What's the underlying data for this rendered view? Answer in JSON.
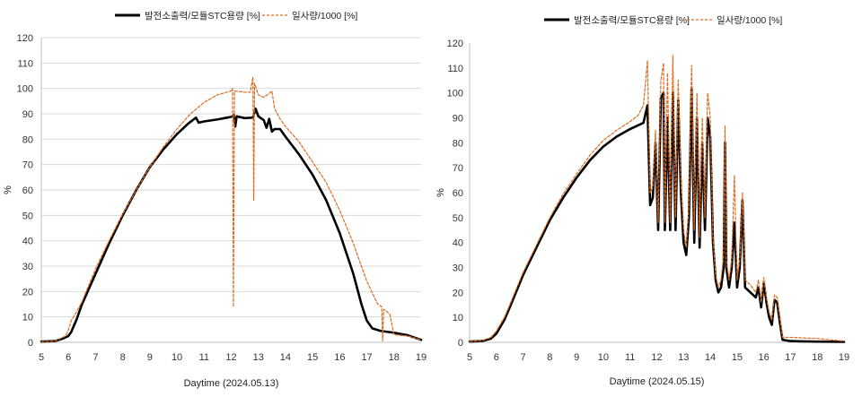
{
  "chart_data": [
    {
      "type": "line",
      "title": "",
      "xlabel": "Daytime (2024.05.13)",
      "ylabel": "%",
      "xlim": [
        5,
        19
      ],
      "ylim": [
        0,
        120
      ],
      "x_ticks": [
        5,
        6,
        7,
        8,
        9,
        10,
        11,
        12,
        13,
        14,
        15,
        16,
        17,
        18,
        19
      ],
      "y_ticks": [
        0,
        10,
        20,
        30,
        40,
        50,
        60,
        70,
        80,
        90,
        100,
        110,
        120
      ],
      "grid": "horizontal",
      "legend": "top-center",
      "series": [
        {
          "name": "발전소출력/모듈STC용량 [%]",
          "color": "#000000",
          "style": "solid",
          "points": [
            [
              5.0,
              0.3
            ],
            [
              5.5,
              0.5
            ],
            [
              5.8,
              1.5
            ],
            [
              6.0,
              2.5
            ],
            [
              6.1,
              4.0
            ],
            [
              6.3,
              9.0
            ],
            [
              6.5,
              15.0
            ],
            [
              7.0,
              27.0
            ],
            [
              7.5,
              39.0
            ],
            [
              8.0,
              50.0
            ],
            [
              8.5,
              60.0
            ],
            [
              9.0,
              69.0
            ],
            [
              9.5,
              76.0
            ],
            [
              10.0,
              82.0
            ],
            [
              10.4,
              86.0
            ],
            [
              10.7,
              88.5
            ],
            [
              10.8,
              86.5
            ],
            [
              11.0,
              87.0
            ],
            [
              11.5,
              87.8
            ],
            [
              12.0,
              88.8
            ],
            [
              12.1,
              89.5
            ],
            [
              12.15,
              85.0
            ],
            [
              12.2,
              89.0
            ],
            [
              12.5,
              88.3
            ],
            [
              12.8,
              88.5
            ],
            [
              12.9,
              92.0
            ],
            [
              13.0,
              89.0
            ],
            [
              13.2,
              87.5
            ],
            [
              13.3,
              84.5
            ],
            [
              13.4,
              88.0
            ],
            [
              13.5,
              83.0
            ],
            [
              13.6,
              84.0
            ],
            [
              13.8,
              84.0
            ],
            [
              14.0,
              81.0
            ],
            [
              14.5,
              74.0
            ],
            [
              15.0,
              66.0
            ],
            [
              15.5,
              56.0
            ],
            [
              16.0,
              43.0
            ],
            [
              16.5,
              27.0
            ],
            [
              16.8,
              15.0
            ],
            [
              17.0,
              8.5
            ],
            [
              17.2,
              5.5
            ],
            [
              17.5,
              4.5
            ],
            [
              18.0,
              3.8
            ],
            [
              18.5,
              2.8
            ],
            [
              19.0,
              1.0
            ]
          ]
        },
        {
          "name": "일사량/1000 [%]",
          "color": "#E06A1E",
          "style": "dashed",
          "points": [
            [
              5.0,
              0.2
            ],
            [
              5.5,
              0.5
            ],
            [
              5.9,
              2.5
            ],
            [
              6.0,
              5.0
            ],
            [
              6.1,
              8.5
            ],
            [
              6.3,
              12.0
            ],
            [
              6.5,
              16.0
            ],
            [
              7.0,
              29.0
            ],
            [
              7.5,
              40.0
            ],
            [
              8.0,
              50.5
            ],
            [
              8.5,
              60.0
            ],
            [
              9.0,
              69.0
            ],
            [
              9.5,
              77.0
            ],
            [
              10.0,
              84.0
            ],
            [
              10.5,
              90.0
            ],
            [
              11.0,
              94.5
            ],
            [
              11.5,
              97.5
            ],
            [
              12.0,
              99.0
            ],
            [
              12.05,
              100.0
            ],
            [
              12.08,
              14.0
            ],
            [
              12.12,
              99.0
            ],
            [
              12.5,
              98.5
            ],
            [
              12.7,
              98.5
            ],
            [
              12.8,
              104.5
            ],
            [
              12.83,
              56.0
            ],
            [
              12.86,
              102.0
            ],
            [
              13.0,
              97.5
            ],
            [
              13.2,
              96.5
            ],
            [
              13.4,
              98.0
            ],
            [
              13.5,
              99.0
            ],
            [
              13.6,
              92.0
            ],
            [
              13.8,
              88.0
            ],
            [
              14.0,
              85.0
            ],
            [
              14.5,
              79.0
            ],
            [
              15.0,
              71.0
            ],
            [
              15.5,
              63.0
            ],
            [
              16.0,
              52.0
            ],
            [
              16.5,
              39.0
            ],
            [
              17.0,
              24.0
            ],
            [
              17.4,
              15.0
            ],
            [
              17.55,
              14.0
            ],
            [
              17.58,
              0.5
            ],
            [
              17.62,
              13.0
            ],
            [
              17.7,
              12.5
            ],
            [
              17.85,
              11.0
            ],
            [
              18.0,
              3.0
            ],
            [
              18.5,
              2.5
            ],
            [
              19.0,
              1.0
            ]
          ]
        }
      ]
    },
    {
      "type": "line",
      "title": "",
      "xlabel": "Daytime (2024.05.15)",
      "ylabel": "%",
      "xlim": [
        5,
        19
      ],
      "ylim": [
        0,
        120
      ],
      "x_ticks": [
        5,
        6,
        7,
        8,
        9,
        10,
        11,
        12,
        13,
        14,
        15,
        16,
        17,
        18,
        19
      ],
      "y_ticks": [
        0,
        10,
        20,
        30,
        40,
        50,
        60,
        70,
        80,
        90,
        100,
        110,
        120
      ],
      "grid": "none",
      "legend": "top-center",
      "series": [
        {
          "name": "발전소출력/모듈STC용량 [%]",
          "color": "#000000",
          "style": "solid",
          "points": [
            [
              5.0,
              0.3
            ],
            [
              5.5,
              0.6
            ],
            [
              5.8,
              1.5
            ],
            [
              6.0,
              3.5
            ],
            [
              6.3,
              9.0
            ],
            [
              6.5,
              14.0
            ],
            [
              7.0,
              27.0
            ],
            [
              7.5,
              38.0
            ],
            [
              8.0,
              49.0
            ],
            [
              8.5,
              58.0
            ],
            [
              9.0,
              66.0
            ],
            [
              9.5,
              73.0
            ],
            [
              10.0,
              78.5
            ],
            [
              10.5,
              82.5
            ],
            [
              11.0,
              85.5
            ],
            [
              11.3,
              87.0
            ],
            [
              11.5,
              88.0
            ],
            [
              11.65,
              95.0
            ],
            [
              11.75,
              55.0
            ],
            [
              11.85,
              58.0
            ],
            [
              11.95,
              80.0
            ],
            [
              12.05,
              45.0
            ],
            [
              12.15,
              98.0
            ],
            [
              12.25,
              100.0
            ],
            [
              12.3,
              45.0
            ],
            [
              12.4,
              90.0
            ],
            [
              12.5,
              45.0
            ],
            [
              12.6,
              100.0
            ],
            [
              12.7,
              45.0
            ],
            [
              12.8,
              97.0
            ],
            [
              12.9,
              60.0
            ],
            [
              13.0,
              40.0
            ],
            [
              13.1,
              35.0
            ],
            [
              13.2,
              50.0
            ],
            [
              13.3,
              102.0
            ],
            [
              13.4,
              40.0
            ],
            [
              13.5,
              90.0
            ],
            [
              13.6,
              38.0
            ],
            [
              13.7,
              80.0
            ],
            [
              13.8,
              45.0
            ],
            [
              13.9,
              90.0
            ],
            [
              14.0,
              82.0
            ],
            [
              14.1,
              40.0
            ],
            [
              14.2,
              25.0
            ],
            [
              14.3,
              20.0
            ],
            [
              14.4,
              22.0
            ],
            [
              14.5,
              30.0
            ],
            [
              14.55,
              80.0
            ],
            [
              14.6,
              30.0
            ],
            [
              14.7,
              22.0
            ],
            [
              14.8,
              30.0
            ],
            [
              14.9,
              48.0
            ],
            [
              15.0,
              22.0
            ],
            [
              15.1,
              30.0
            ],
            [
              15.2,
              57.0
            ],
            [
              15.3,
              22.0
            ],
            [
              15.5,
              20.0
            ],
            [
              15.7,
              18.0
            ],
            [
              15.8,
              22.0
            ],
            [
              15.9,
              14.0
            ],
            [
              16.0,
              24.0
            ],
            [
              16.1,
              16.0
            ],
            [
              16.2,
              10.0
            ],
            [
              16.3,
              7.0
            ],
            [
              16.4,
              17.0
            ],
            [
              16.5,
              16.0
            ],
            [
              16.6,
              8.0
            ],
            [
              16.7,
              1.0
            ],
            [
              17.0,
              0.5
            ],
            [
              18.0,
              0.3
            ],
            [
              19.0,
              0.2
            ]
          ]
        },
        {
          "name": "일사량/1000 [%]",
          "color": "#E06A1E",
          "style": "dashed",
          "points": [
            [
              5.0,
              0.3
            ],
            [
              5.5,
              0.8
            ],
            [
              5.8,
              2.0
            ],
            [
              6.0,
              4.5
            ],
            [
              6.3,
              10.0
            ],
            [
              6.5,
              15.0
            ],
            [
              7.0,
              28.0
            ],
            [
              7.5,
              39.0
            ],
            [
              8.0,
              50.0
            ],
            [
              8.5,
              59.5
            ],
            [
              9.0,
              67.5
            ],
            [
              9.5,
              75.0
            ],
            [
              10.0,
              81.0
            ],
            [
              10.5,
              85.0
            ],
            [
              11.0,
              88.5
            ],
            [
              11.3,
              91.0
            ],
            [
              11.5,
              95.0
            ],
            [
              11.65,
              113.0
            ],
            [
              11.75,
              60.0
            ],
            [
              11.85,
              62.0
            ],
            [
              11.95,
              85.0
            ],
            [
              12.05,
              48.0
            ],
            [
              12.15,
              105.0
            ],
            [
              12.25,
              112.0
            ],
            [
              12.3,
              48.0
            ],
            [
              12.4,
              108.0
            ],
            [
              12.5,
              48.0
            ],
            [
              12.6,
              115.0
            ],
            [
              12.7,
              50.0
            ],
            [
              12.8,
              105.0
            ],
            [
              12.9,
              65.0
            ],
            [
              13.0,
              45.0
            ],
            [
              13.1,
              38.0
            ],
            [
              13.2,
              55.0
            ],
            [
              13.3,
              111.0
            ],
            [
              13.4,
              45.0
            ],
            [
              13.5,
              100.0
            ],
            [
              13.6,
              42.0
            ],
            [
              13.7,
              90.0
            ],
            [
              13.8,
              50.0
            ],
            [
              13.9,
              100.0
            ],
            [
              14.0,
              90.0
            ],
            [
              14.1,
              42.0
            ],
            [
              14.2,
              27.0
            ],
            [
              14.3,
              22.0
            ],
            [
              14.4,
              25.0
            ],
            [
              14.5,
              35.0
            ],
            [
              14.55,
              87.0
            ],
            [
              14.6,
              33.0
            ],
            [
              14.7,
              25.0
            ],
            [
              14.8,
              33.0
            ],
            [
              14.9,
              67.0
            ],
            [
              15.0,
              25.0
            ],
            [
              15.1,
              33.0
            ],
            [
              15.2,
              60.0
            ],
            [
              15.3,
              25.0
            ],
            [
              15.5,
              23.0
            ],
            [
              15.7,
              20.0
            ],
            [
              15.8,
              25.0
            ],
            [
              15.9,
              16.0
            ],
            [
              16.0,
              26.0
            ],
            [
              16.1,
              18.0
            ],
            [
              16.2,
              12.0
            ],
            [
              16.3,
              9.0
            ],
            [
              16.4,
              19.0
            ],
            [
              16.5,
              18.0
            ],
            [
              16.6,
              10.0
            ],
            [
              16.7,
              2.0
            ],
            [
              17.0,
              2.0
            ],
            [
              18.0,
              1.5
            ],
            [
              19.0,
              0.5
            ]
          ]
        }
      ]
    }
  ]
}
